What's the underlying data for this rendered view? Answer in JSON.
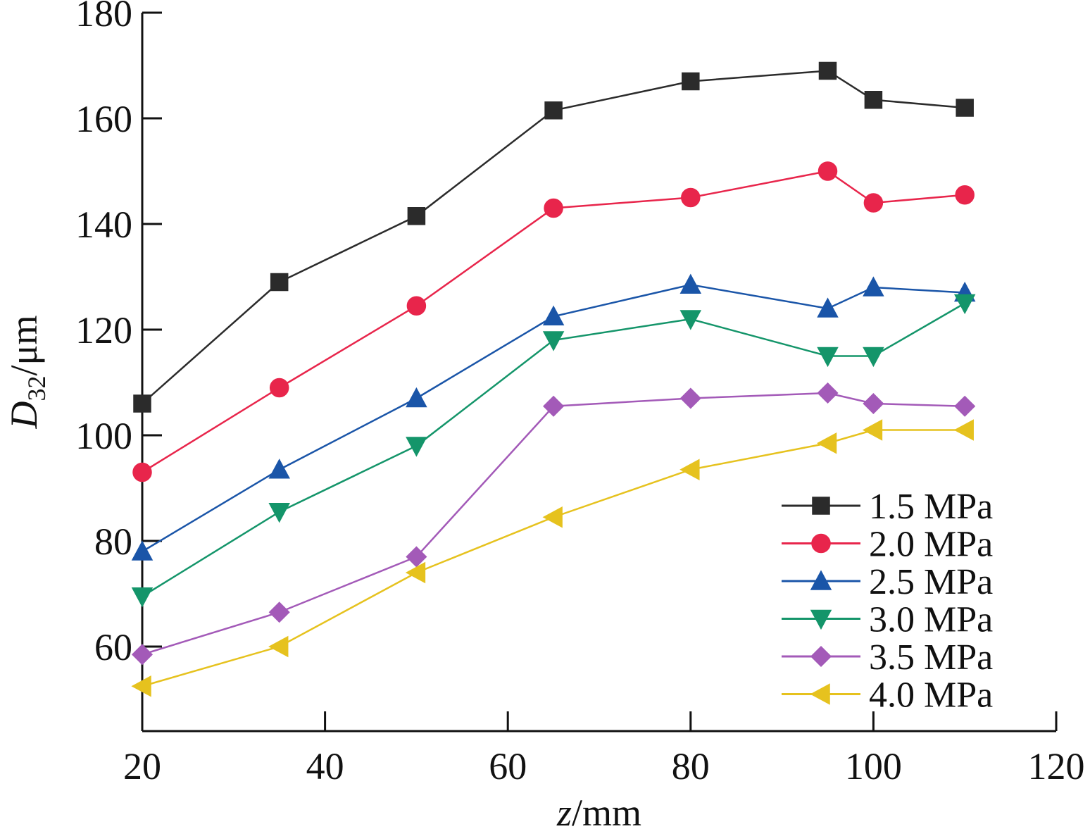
{
  "chart_data": {
    "type": "line",
    "title": "",
    "xlabel": {
      "var": "z",
      "unit": "/mm"
    },
    "ylabel": {
      "var": "D",
      "sub": "32",
      "unit": "/μm"
    },
    "xlim": [
      20,
      120
    ],
    "ylim": [
      44,
      180
    ],
    "xticks": [
      20,
      40,
      60,
      80,
      100,
      120
    ],
    "yticks": [
      60,
      80,
      100,
      120,
      140,
      160,
      180
    ],
    "x": [
      20,
      35,
      50,
      65,
      80,
      95,
      100,
      110
    ],
    "legend_position": "bottom-right",
    "grid": false,
    "series": [
      {
        "name": "1.5 MPa",
        "color": "#2b2b2b",
        "marker": "square",
        "values": [
          106,
          129,
          141.5,
          161.5,
          167,
          169,
          163.5,
          162
        ]
      },
      {
        "name": "2.0 MPa",
        "color": "#e8254b",
        "marker": "circle",
        "values": [
          93,
          109,
          124.5,
          143,
          145,
          150,
          144,
          145.5
        ]
      },
      {
        "name": "2.5 MPa",
        "color": "#1a55a8",
        "marker": "triangle-up",
        "values": [
          78,
          93.5,
          107,
          122.5,
          128.5,
          124,
          128,
          127
        ]
      },
      {
        "name": "3.0 MPa",
        "color": "#14956a",
        "marker": "triangle-down",
        "values": [
          69.5,
          85.5,
          98,
          118,
          122,
          115,
          115,
          125
        ]
      },
      {
        "name": "3.5 MPa",
        "color": "#a35ab8",
        "marker": "diamond",
        "values": [
          58.5,
          66.5,
          77,
          105.5,
          107,
          108,
          106,
          105.5
        ]
      },
      {
        "name": "4.0 MPa",
        "color": "#e6c21e",
        "marker": "triangle-left",
        "values": [
          52.5,
          60,
          74,
          84.5,
          93.5,
          98.5,
          101,
          101
        ]
      }
    ]
  }
}
